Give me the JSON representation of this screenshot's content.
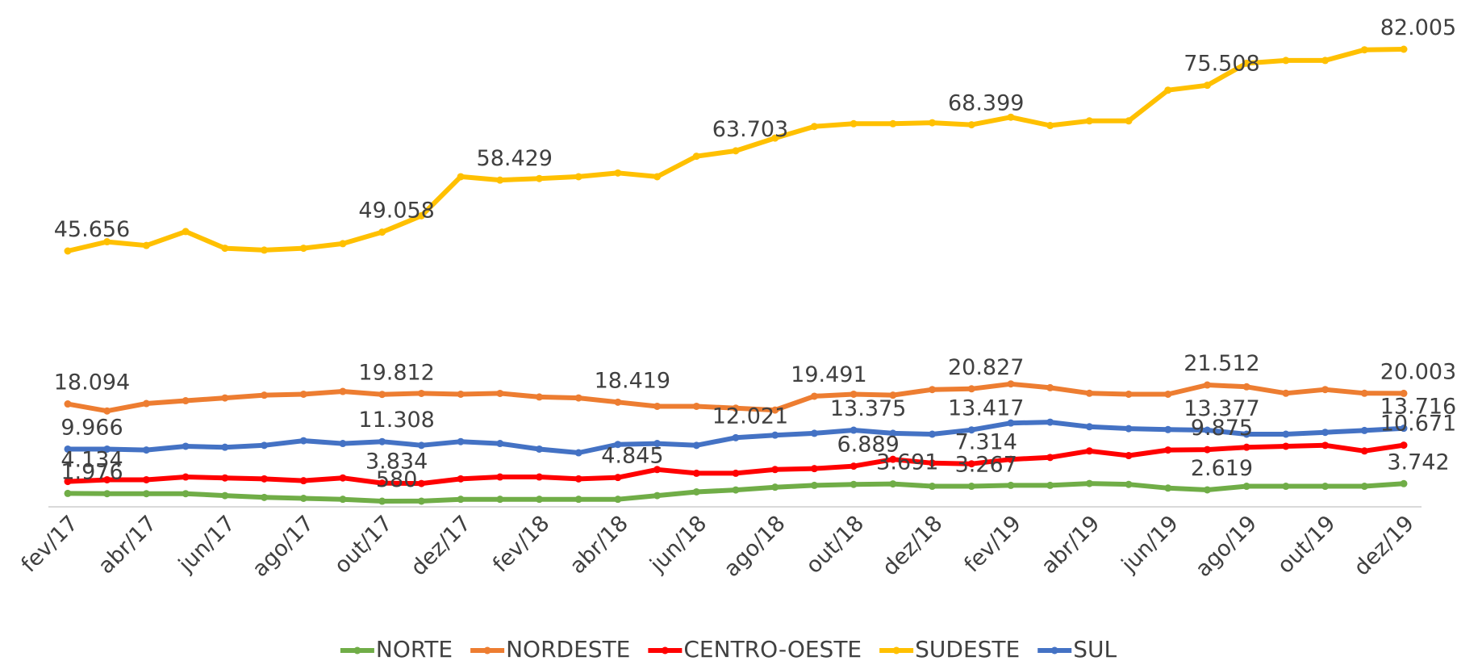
{
  "chart_data": {
    "type": "line",
    "categories": [
      "fev/17",
      null,
      "abr/17",
      null,
      "jun/17",
      null,
      "ago/17",
      null,
      "out/17",
      null,
      "dez/17",
      null,
      "fev/18",
      null,
      "abr/18",
      null,
      "jun/18",
      null,
      "ago/18",
      null,
      "out/18",
      null,
      "dez/18",
      null,
      "fev/19",
      null,
      "abr/19",
      null,
      "jun/19",
      null,
      "ago/19",
      null,
      "out/19",
      null,
      "dez/19"
    ],
    "series": [
      {
        "name": "NORTE",
        "color": "#70ad47",
        "values": [
          1976,
          1930,
          1930,
          1930,
          1590,
          1260,
          1090,
          920,
          580,
          590,
          920,
          920,
          920,
          920,
          920,
          1590,
          2260,
          2600,
          3100,
          3430,
          3600,
          3691,
          3270,
          3267,
          3430,
          3430,
          3770,
          3600,
          2940,
          2619,
          3270,
          3270,
          3270,
          3270,
          3742
        ],
        "value_labels": [
          "1.976",
          null,
          null,
          null,
          null,
          null,
          null,
          null,
          "580",
          null,
          null,
          null,
          null,
          null,
          null,
          null,
          null,
          null,
          null,
          null,
          null,
          "3.691",
          null,
          "3.267",
          null,
          null,
          null,
          null,
          null,
          "2.619",
          null,
          null,
          null,
          null,
          "3.742"
        ]
      },
      {
        "name": "NORDESTE",
        "color": "#ed7d31",
        "values": [
          18094,
          16830,
          18170,
          18680,
          19180,
          19680,
          19850,
          20350,
          19812,
          20000,
          19850,
          20000,
          19350,
          19180,
          18419,
          17670,
          17670,
          17340,
          17000,
          19491,
          19850,
          19680,
          20690,
          20827,
          21700,
          21020,
          20020,
          19850,
          19850,
          21512,
          21190,
          20020,
          20690,
          20020,
          20003
        ],
        "value_labels": [
          "18.094",
          null,
          null,
          null,
          null,
          null,
          null,
          null,
          "19.812",
          null,
          null,
          null,
          null,
          null,
          "18.419",
          null,
          null,
          null,
          null,
          "19.491",
          null,
          null,
          null,
          "20.827",
          null,
          null,
          null,
          null,
          null,
          "21.512",
          null,
          null,
          null,
          null,
          "20.003"
        ]
      },
      {
        "name": "CENTRO-OESTE",
        "color": "#ff0000",
        "values": [
          4134,
          4440,
          4440,
          4940,
          4770,
          4600,
          4270,
          4770,
          3834,
          3770,
          4600,
          4940,
          4940,
          4600,
          4845,
          6280,
          5610,
          5610,
          6280,
          6450,
          6889,
          8120,
          7450,
          7314,
          8120,
          8460,
          9630,
          8790,
          9800,
          9875,
          10300,
          10470,
          10640,
          9630,
          10671
        ],
        "value_labels": [
          "4.134",
          null,
          null,
          null,
          null,
          null,
          null,
          null,
          "3.834",
          null,
          null,
          null,
          null,
          null,
          "4.845",
          null,
          null,
          null,
          null,
          null,
          "6.889",
          null,
          null,
          "7.314",
          null,
          null,
          null,
          null,
          null,
          "9.875",
          null,
          null,
          null,
          null,
          "10.671"
        ]
      },
      {
        "name": "SUDESTE",
        "color": "#ffc000",
        "values": [
          45656,
          47320,
          46650,
          49160,
          46150,
          45810,
          46150,
          46980,
          49058,
          52000,
          59040,
          58429,
          58710,
          59040,
          59710,
          59040,
          62730,
          63703,
          66000,
          68090,
          68590,
          68590,
          68760,
          68399,
          69760,
          68260,
          69100,
          69100,
          74630,
          75508,
          79480,
          79980,
          79980,
          81900,
          82005
        ],
        "value_labels": [
          "45.656",
          null,
          null,
          null,
          null,
          null,
          null,
          null,
          "49.058",
          null,
          null,
          "58.429",
          null,
          null,
          null,
          null,
          null,
          "63.703",
          null,
          null,
          null,
          null,
          null,
          "68.399",
          null,
          null,
          null,
          null,
          null,
          "75.508",
          null,
          null,
          null,
          null,
          "82.005"
        ]
      },
      {
        "name": "SUL",
        "color": "#4472c4",
        "values": [
          9966,
          9966,
          9800,
          10470,
          10300,
          10640,
          11470,
          10970,
          11308,
          10640,
          11310,
          10970,
          9966,
          9300,
          10800,
          10970,
          10640,
          12021,
          12480,
          12810,
          13375,
          12810,
          12650,
          13417,
          14660,
          14820,
          13990,
          13650,
          13480,
          13377,
          12650,
          12650,
          12980,
          13320,
          13716
        ],
        "value_labels": [
          "9.966",
          null,
          null,
          null,
          null,
          null,
          null,
          null,
          "11.308",
          null,
          null,
          null,
          null,
          null,
          null,
          null,
          null,
          "12.021",
          null,
          null,
          "13.375",
          null,
          null,
          "13.417",
          null,
          null,
          null,
          null,
          null,
          "13.377",
          null,
          null,
          null,
          null,
          "13.716"
        ]
      }
    ]
  }
}
